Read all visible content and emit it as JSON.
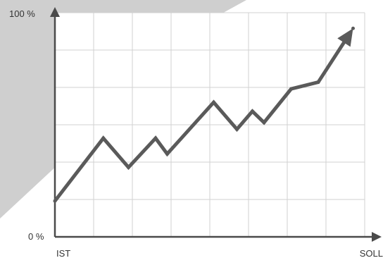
{
  "chart_data": {
    "type": "line",
    "xlabel_start": "IST",
    "xlabel_end": "SOLL",
    "ylabel_top": "100 %",
    "ylabel_bottom": "0 %",
    "ylim": [
      0,
      100
    ],
    "xlim": [
      0,
      8
    ],
    "grid": true,
    "series": [
      {
        "x": [
          0,
          1.25,
          1.9,
          2.6,
          2.9,
          4.1,
          4.7,
          5.1,
          5.4,
          6.1,
          6.8,
          7.7
        ],
        "y": [
          16,
          44,
          31,
          44,
          37,
          60,
          48,
          56,
          51,
          66,
          69,
          93
        ]
      }
    ],
    "colors": {
      "line": "#5a5a5a",
      "grid": "#d2d2d2",
      "axis": "#4a4a4a",
      "background_shape": "#cfcfcf"
    }
  }
}
